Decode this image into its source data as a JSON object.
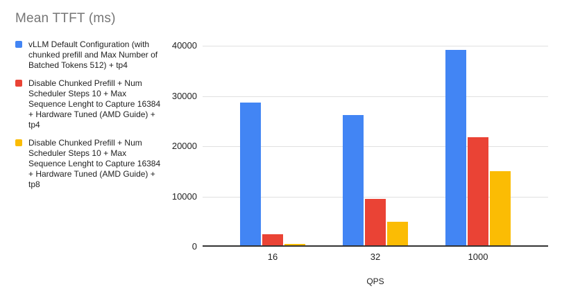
{
  "title": "Mean TTFT (ms)",
  "legend": {
    "items": [
      {
        "label": "vLLM Default Configuration (with chunked prefill and Max Number of Batched Tokens 512) + tp4",
        "color": "#4285F4"
      },
      {
        "label": "Disable Chunked Prefill + Num Scheduler Steps 10 + Max Sequence Lenght to Capture 16384 + Hardware Tuned (AMD Guide) + tp4",
        "color": "#EA4335"
      },
      {
        "label": "Disable Chunked Prefill + Num Scheduler Steps 10 + Max Sequence Lenght to Capture 16384 + Hardware Tuned (AMD Guide) + tp8",
        "color": "#FBBC04"
      }
    ]
  },
  "chart_data": {
    "type": "bar",
    "title": "Mean TTFT (ms)",
    "categories": [
      "16",
      "32",
      "1000"
    ],
    "series": [
      {
        "name": "vLLM Default Configuration (with chunked prefill and Max Number of Batched Tokens 512) + tp4",
        "color": "#4285F4",
        "values": [
          28400,
          26000,
          38900
        ]
      },
      {
        "name": "Disable Chunked Prefill + Num Scheduler Steps 10 + Max Sequence Lenght to Capture 16384 + Hardware Tuned (AMD Guide) + tp4",
        "color": "#EA4335",
        "values": [
          2200,
          9300,
          21500
        ]
      },
      {
        "name": "Disable Chunked Prefill + Num Scheduler Steps 10 + Max Sequence Lenght to Capture 16384 + Hardware Tuned (AMD Guide) + tp8",
        "color": "#FBBC04",
        "values": [
          300,
          4700,
          14700
        ]
      }
    ],
    "xlabel": "QPS",
    "ylabel": "",
    "ylim": [
      0,
      40000
    ],
    "yticks": [
      0,
      10000,
      20000,
      30000,
      40000
    ],
    "ytick_labels": [
      "0",
      "10000",
      "20000",
      "30000",
      "40000"
    ],
    "grid": true,
    "legend_position": "left"
  },
  "colors": {
    "background": "#FFFFFF",
    "title_text": "#757575",
    "label_text": "#212121",
    "gridline": "#E0E0E0",
    "axis_line": "#333333"
  }
}
